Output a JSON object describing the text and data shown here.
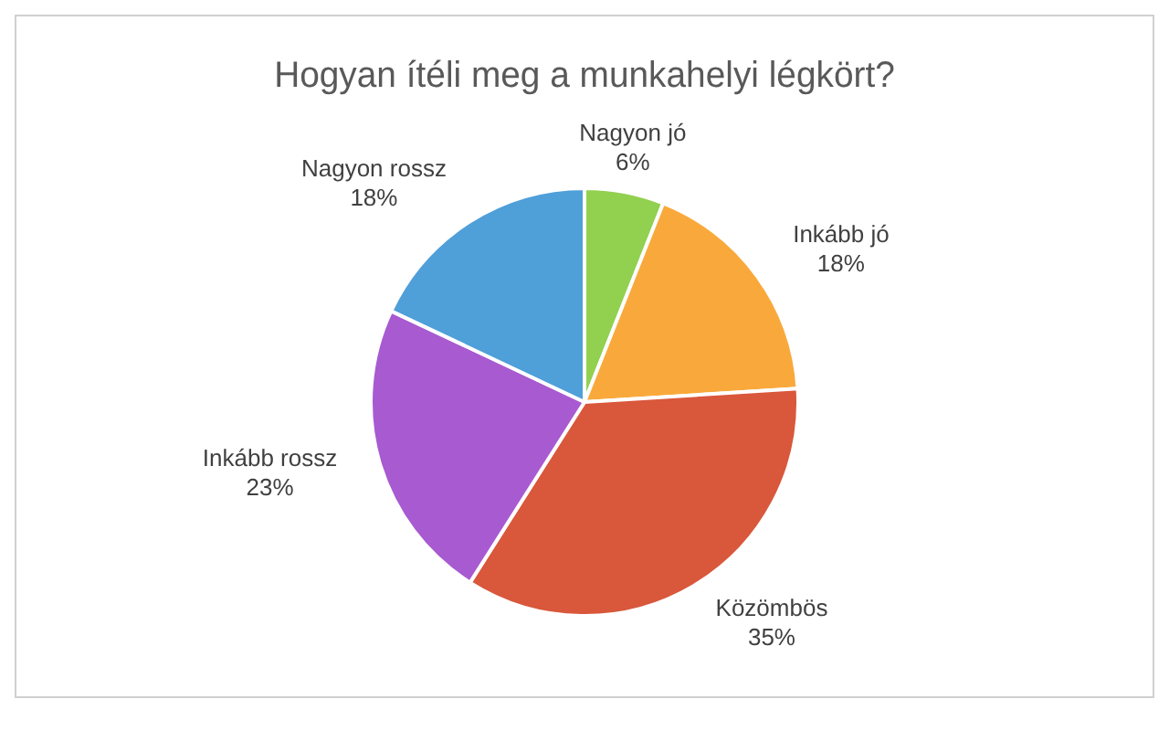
{
  "chart_data": {
    "type": "pie",
    "title": "Hogyan ítéli meg a munkahelyi légkört?",
    "categories": [
      "Nagyon jó",
      "Inkább jó",
      "Közömbös",
      "Inkább rossz",
      "Nagyon rossz"
    ],
    "values": [
      6,
      18,
      35,
      23,
      18
    ],
    "value_labels": [
      "6%",
      "18%",
      "35%",
      "23%",
      "18%"
    ],
    "colors": [
      "#92d050",
      "#f9a93b",
      "#d9573b",
      "#a85ad1",
      "#4f9fd9"
    ],
    "legend": false
  }
}
